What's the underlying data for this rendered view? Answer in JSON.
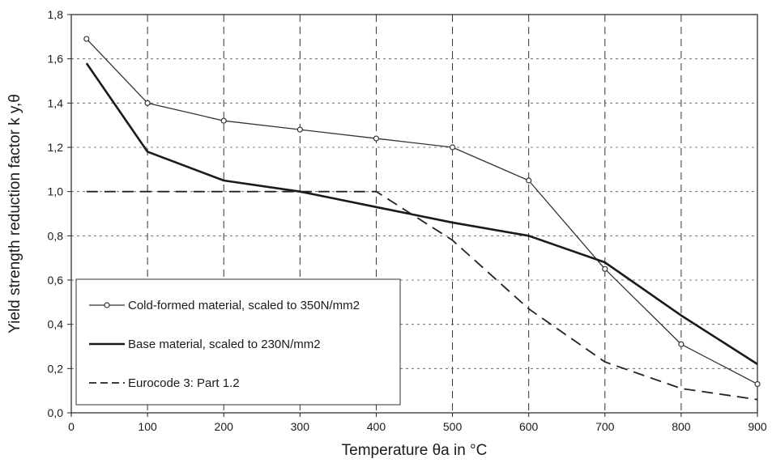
{
  "chart_data": {
    "type": "line",
    "title": "",
    "xlabel": "Temperature θa in °C",
    "ylabel": "Yield strength reduction factor k y,θ",
    "xlim": [
      0,
      900
    ],
    "ylim": [
      0,
      1.8
    ],
    "x_ticks": [
      "0",
      "100",
      "200",
      "300",
      "400",
      "500",
      "600",
      "700",
      "800",
      "900"
    ],
    "y_ticks": [
      "0,0",
      "0,2",
      "0,4",
      "0,6",
      "0,8",
      "1,0",
      "1,2",
      "1,4",
      "1,6",
      "1,8"
    ],
    "grid": true,
    "legend_position": "bottom-left",
    "series": [
      {
        "name": "Cold-formed material, scaled to 350N/mm2",
        "style": "solid-markers",
        "x": [
          20,
          100,
          200,
          300,
          400,
          500,
          600,
          700,
          800,
          900
        ],
        "y": [
          1.69,
          1.4,
          1.32,
          1.28,
          1.24,
          1.2,
          1.05,
          0.65,
          0.31,
          0.13
        ]
      },
      {
        "name": "Base material, scaled to 230N/mm2",
        "style": "solid-bold",
        "x": [
          20,
          100,
          200,
          300,
          400,
          500,
          600,
          700,
          800,
          900
        ],
        "y": [
          1.58,
          1.18,
          1.05,
          1.0,
          0.93,
          0.86,
          0.8,
          0.68,
          0.44,
          0.22
        ]
      },
      {
        "name": "Eurocode 3: Part 1.2",
        "style": "dashed",
        "x": [
          20,
          100,
          200,
          300,
          400,
          500,
          600,
          700,
          800,
          900
        ],
        "y": [
          1.0,
          1.0,
          1.0,
          1.0,
          1.0,
          0.78,
          0.47,
          0.23,
          0.11,
          0.06
        ]
      }
    ]
  }
}
